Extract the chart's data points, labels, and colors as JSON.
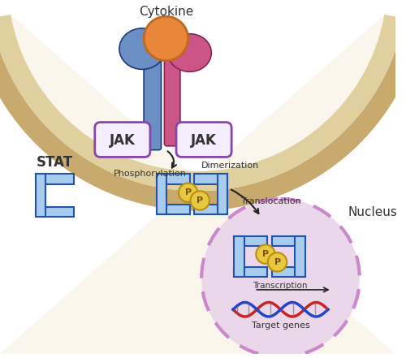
{
  "bg_color": "#faf8f0",
  "membrane_outer_color": "#c8a96e",
  "membrane_inner_color": "#e0d0a0",
  "cell_interior_color": "#faf6ec",
  "receptor_left_color": "#6b8fc4",
  "receptor_right_color": "#cc5588",
  "cytokine_color": "#e8873a",
  "cytokine_outline": "#c06820",
  "jak_fill": "#f5eeff",
  "jak_border": "#8844aa",
  "stat_color": "#6baade",
  "stat_fill": "#a8ccee",
  "stat_border": "#2255aa",
  "nucleus_fill": "#ead8ea",
  "nucleus_border": "#cc88cc",
  "p_circle_fill": "#e8c840",
  "p_circle_border": "#b89010",
  "arrow_color": "#222222",
  "text_color": "#333333",
  "dna_red": "#cc2222",
  "dna_blue": "#2244cc",
  "cytokine_text": "Cytokine",
  "jak_text": "JAK",
  "stat_text": "STAT",
  "phosphorylation_text": "Phosphorylation",
  "dimerization_text": "Dimerization",
  "translocation_text": "Translocation",
  "nucleus_text": "Nucleus",
  "transcription_text": "Transcription",
  "target_genes_text": "Target genes",
  "p_text": "P"
}
